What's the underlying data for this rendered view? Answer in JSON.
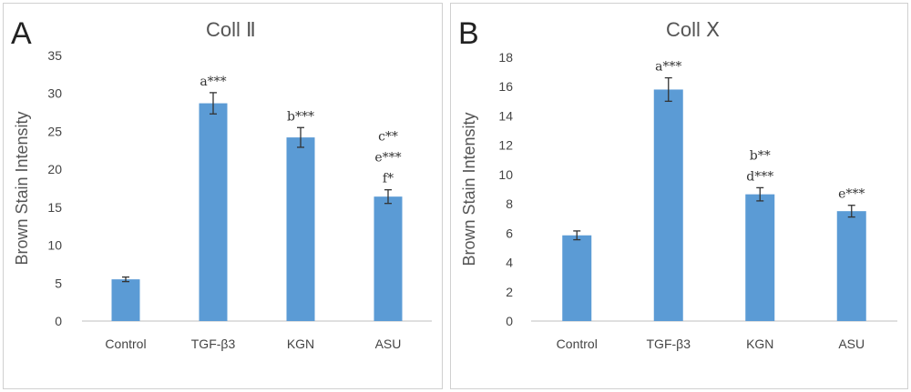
{
  "panels": [
    {
      "letter": "A",
      "title": "Coll Ⅱ",
      "chart_data": {
        "type": "bar",
        "title": "Coll Ⅱ",
        "ylabel": "Brown Stain Intensity",
        "xlabel": "",
        "categories": [
          "Control",
          "TGF-β3",
          "KGN",
          "ASU"
        ],
        "values": [
          5.5,
          28.7,
          24.2,
          16.4
        ],
        "errors": [
          0.3,
          1.4,
          1.3,
          0.9
        ],
        "annotations": [
          [],
          [
            "a***"
          ],
          [
            "b***"
          ],
          [
            "c**",
            "e***",
            "f*"
          ]
        ],
        "ylim": [
          0,
          35
        ],
        "yticks": [
          0,
          5,
          10,
          15,
          20,
          25,
          30,
          35
        ],
        "bar_color": "#5b9bd5",
        "grid": false
      }
    },
    {
      "letter": "B",
      "title": "Coll Ⅹ",
      "chart_data": {
        "type": "bar",
        "title": "Coll Ⅹ",
        "ylabel": "Brown Stain Intensity",
        "xlabel": "",
        "categories": [
          "Control",
          "TGF-β3",
          "KGN",
          "ASU"
        ],
        "values": [
          5.85,
          15.8,
          8.65,
          7.5
        ],
        "errors": [
          0.3,
          0.8,
          0.45,
          0.4
        ],
        "annotations": [
          [],
          [
            "a***"
          ],
          [
            "b**",
            "d***"
          ],
          [
            "e***"
          ]
        ],
        "ylim": [
          0,
          18
        ],
        "yticks": [
          0,
          2,
          4,
          6,
          8,
          10,
          12,
          14,
          16,
          18
        ],
        "bar_color": "#5b9bd5",
        "grid": false
      }
    }
  ]
}
